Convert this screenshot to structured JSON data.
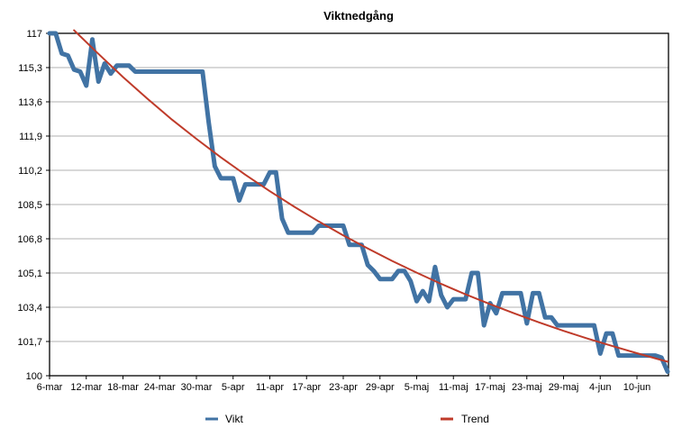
{
  "title": "Viktnedgång",
  "legend": [
    {
      "label": "Vikt",
      "color": "#4173a4"
    },
    {
      "label": "Trend",
      "color": "#bf3b2a"
    }
  ],
  "colors": {
    "background": "#ffffff",
    "plot_border": "#000000",
    "gridline": "#b0b0b0",
    "vikt_line": "#4173a4",
    "trend_line": "#bf3b2a",
    "text": "#000000"
  },
  "chart_data": {
    "type": "line",
    "title": "Viktnedgång",
    "xlabel": "",
    "ylabel": "",
    "ylim": [
      100,
      117
    ],
    "grid": true,
    "legend_position": "bottom",
    "x_tick_interval_days": 6,
    "x_tick_labels": [
      "6-mar",
      "12-mar",
      "18-mar",
      "24-mar",
      "30-mar",
      "5-apr",
      "11-apr",
      "17-apr",
      "23-apr",
      "29-apr",
      "5-maj",
      "11-maj",
      "17-maj",
      "23-maj",
      "29-maj",
      "4-jun",
      "10-jun"
    ],
    "y_ticks": [
      100,
      101.7,
      103.4,
      105.1,
      106.8,
      108.5,
      110.2,
      111.9,
      113.6,
      115.3,
      117
    ],
    "y_tick_labels": [
      "100",
      "101,7",
      "103,4",
      "105,1",
      "106,8",
      "108,5",
      "110,2",
      "111,9",
      "113,6",
      "115,3",
      "117"
    ],
    "series": [
      {
        "name": "Vikt",
        "color": "#4173a4",
        "stroke_width": 5,
        "start_day": 0,
        "step_days": 1,
        "values": [
          117,
          117,
          116,
          115.9,
          115.2,
          115.1,
          114.4,
          116.7,
          114.6,
          115.5,
          115,
          115.4,
          115.4,
          115.4,
          115.1,
          115.1,
          115.1,
          115.1,
          115.1,
          115.1,
          115.1,
          115.1,
          115.1,
          115.1,
          115.1,
          115.1,
          112.6,
          110.4,
          109.8,
          109.8,
          109.8,
          108.7,
          109.5,
          109.5,
          109.5,
          109.5,
          110.1,
          110.1,
          107.8,
          107.1,
          107.1,
          107.1,
          107.1,
          107.1,
          107.45,
          107.45,
          107.45,
          107.45,
          107.45,
          106.5,
          106.5,
          106.5,
          105.5,
          105.2,
          104.8,
          104.8,
          104.8,
          105.2,
          105.2,
          104.7,
          103.7,
          104.2,
          103.7,
          105.4,
          104,
          103.4,
          103.8,
          103.8,
          103.8,
          105.1,
          105.1,
          102.5,
          103.6,
          103.1,
          104.1,
          104.1,
          104.1,
          104.1,
          102.6,
          104.1,
          104.1,
          102.9,
          102.9,
          102.5,
          102.5,
          102.5,
          102.5,
          102.5,
          102.5,
          102.5,
          101.1,
          102.1,
          102.1,
          101,
          101,
          101,
          101,
          101,
          101,
          101,
          100.9,
          100.2
        ]
      },
      {
        "name": "Trend",
        "color": "#bf3b2a",
        "stroke_width": 2,
        "x": [
          4,
          8,
          12,
          16,
          20,
          24,
          28,
          32,
          36,
          40,
          44,
          48,
          52,
          56,
          60,
          64,
          68,
          72,
          76,
          80,
          84,
          88,
          92,
          96,
          100,
          101
        ],
        "values": [
          117.15,
          115.98,
          114.83,
          113.75,
          112.72,
          111.76,
          110.84,
          109.98,
          109.16,
          108.39,
          107.66,
          106.97,
          106.32,
          105.7,
          105.12,
          104.56,
          104.04,
          103.55,
          103.09,
          102.65,
          102.23,
          101.84,
          101.47,
          101.12,
          100.78,
          100.7
        ]
      }
    ]
  }
}
